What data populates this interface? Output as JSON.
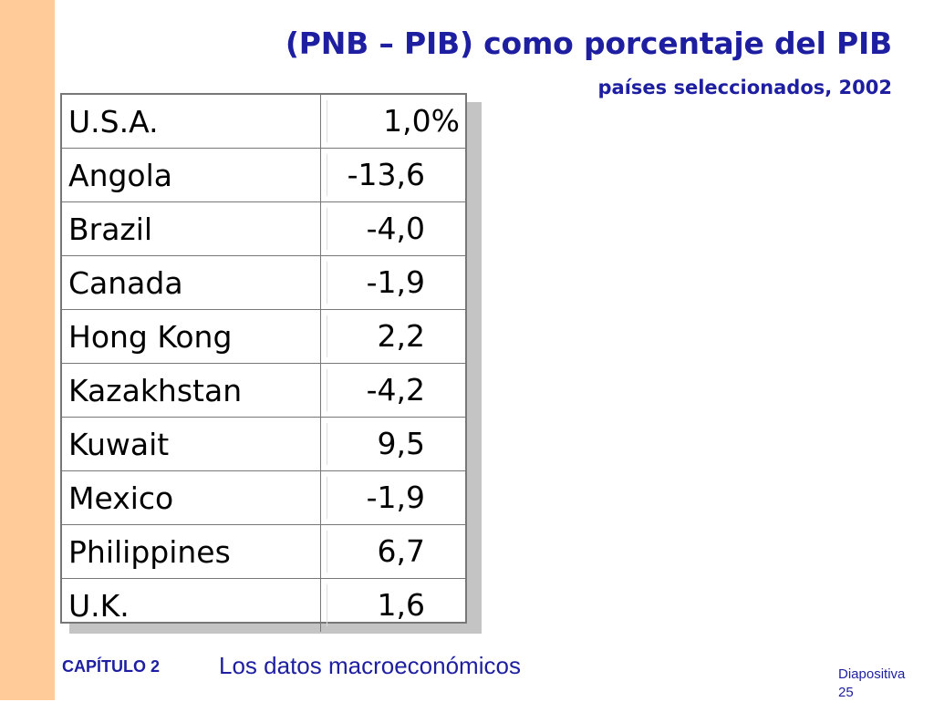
{
  "slide": {
    "title": "(PNB – PIB) como porcentaje del PIB",
    "subtitle": "países seleccionados, 2002"
  },
  "table": {
    "rows": [
      {
        "country": "U.S.A.",
        "value": "1,0%"
      },
      {
        "country": "Angola",
        "value": "-13,6"
      },
      {
        "country": "Brazil",
        "value": "-4,0"
      },
      {
        "country": "Canada",
        "value": "-1,9"
      },
      {
        "country": "Hong Kong",
        "value": "2,2"
      },
      {
        "country": "Kazakhstan",
        "value": "-4,2"
      },
      {
        "country": "Kuwait",
        "value": "9,5"
      },
      {
        "country": "Mexico",
        "value": "-1,9"
      },
      {
        "country": "Philippines",
        "value": "6,7"
      },
      {
        "country": "U.K.",
        "value": "1,6"
      }
    ]
  },
  "footer": {
    "chapter": "CAPÍTULO 2",
    "topic": "Los datos macroeconómicos",
    "slide_label": "Diapositiva",
    "slide_number": "25"
  },
  "colors": {
    "accent": "#1d1fa0",
    "side_stripe": "#ffcc99"
  }
}
